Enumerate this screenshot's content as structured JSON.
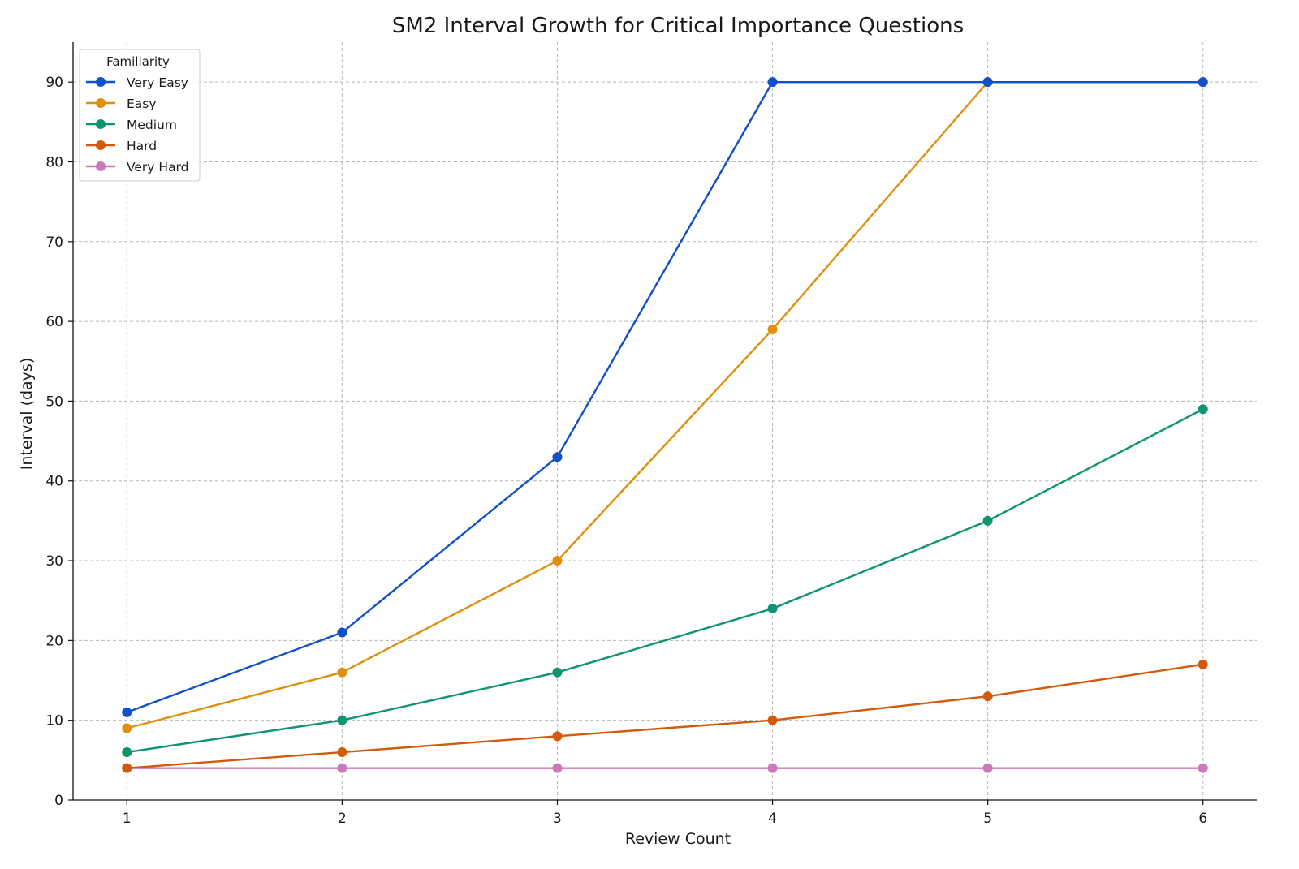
{
  "chart_data": {
    "type": "line",
    "title": "SM2 Interval Growth for Critical Importance Questions",
    "xlabel": "Review Count",
    "ylabel": "Interval (days)",
    "x": [
      1,
      2,
      3,
      4,
      5,
      6
    ],
    "xlim": [
      0.75,
      6.25
    ],
    "ylim": [
      0,
      95
    ],
    "xticks": [
      1,
      2,
      3,
      4,
      5,
      6
    ],
    "yticks": [
      0,
      10,
      20,
      30,
      40,
      50,
      60,
      70,
      80,
      90
    ],
    "grid": true,
    "legend": {
      "title": "Familiarity",
      "placement": "top-left"
    },
    "series": [
      {
        "name": "Very Easy",
        "color": "#1050c8",
        "values": [
          11,
          21,
          43,
          90,
          90,
          90
        ]
      },
      {
        "name": "Easy",
        "color": "#de8f0e",
        "values": [
          9,
          16,
          30,
          59,
          90,
          90
        ]
      },
      {
        "name": "Medium",
        "color": "#0d9470",
        "values": [
          6,
          10,
          16,
          24,
          35,
          49
        ]
      },
      {
        "name": "Hard",
        "color": "#d35a0a",
        "values": [
          4,
          6,
          8,
          10,
          13,
          17
        ]
      },
      {
        "name": "Very Hard",
        "color": "#cc78bc",
        "values": [
          4,
          4,
          4,
          4,
          4,
          4
        ]
      }
    ]
  }
}
